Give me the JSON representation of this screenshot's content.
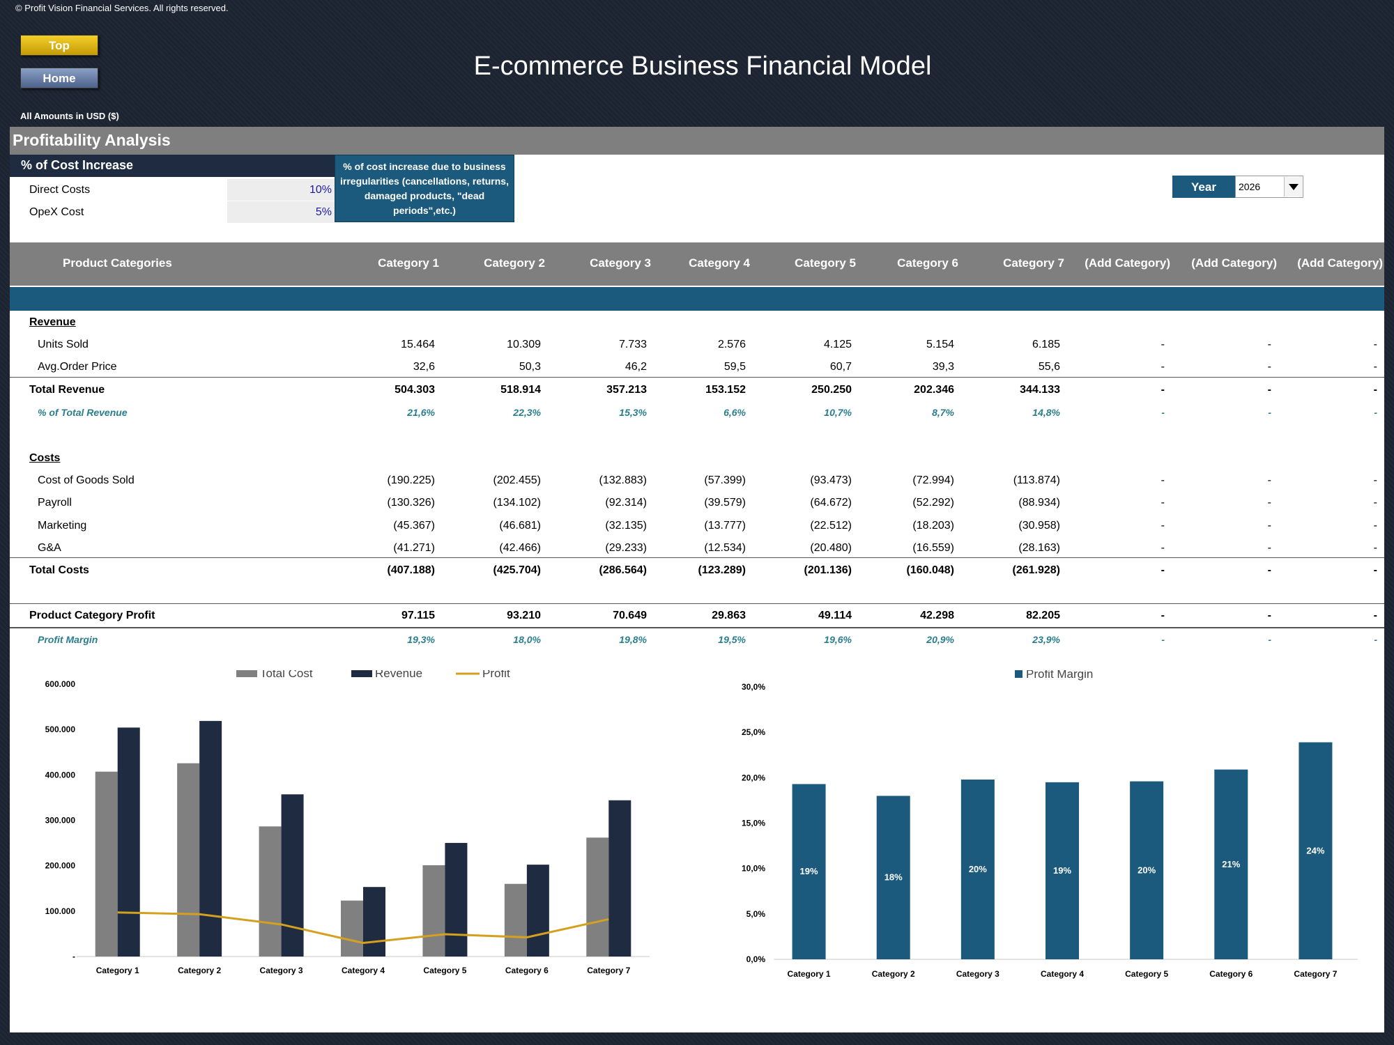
{
  "header": {
    "copyright": "© Profit Vision Financial Services. All rights reserved.",
    "top_button": "Top",
    "home_button": "Home",
    "title": "E-commerce Business Financial Model",
    "amounts_label": "All Amounts in  USD ($)"
  },
  "section": {
    "title": "Profitability Analysis",
    "cost_increase_title": "% of Cost Increase",
    "direct_costs_label": "Direct Costs",
    "direct_costs_value": "10%",
    "opex_label": "OpeX Cost",
    "opex_value": "5%",
    "note": "% of cost increase due to business irregularities (cancellations, returns, damaged products, \"dead periods\",etc.)",
    "year_label": "Year",
    "year_value": "2026"
  },
  "table": {
    "header_label": "Product Categories",
    "columns": [
      "Category 1",
      "Category 2",
      "Category 3",
      "Category 4",
      "Category 5",
      "Category 6",
      "Category 7",
      "(Add Category)",
      "(Add Category)",
      "(Add Category)"
    ],
    "revenue_heading": "Revenue",
    "costs_heading": "Costs",
    "rows": {
      "units_sold": {
        "label": "Units Sold",
        "values": [
          "15.464",
          "10.309",
          "7.733",
          "2.576",
          "4.125",
          "5.154",
          "6.185",
          "-",
          "-",
          "-"
        ]
      },
      "avg_price": {
        "label": "Avg.Order Price",
        "values": [
          "32,6",
          "50,3",
          "46,2",
          "59,5",
          "60,7",
          "39,3",
          "55,6",
          "-",
          "-",
          "-"
        ]
      },
      "total_revenue": {
        "label": "Total Revenue",
        "values": [
          "504.303",
          "518.914",
          "357.213",
          "153.152",
          "250.250",
          "202.346",
          "344.133",
          "-",
          "-",
          "-"
        ]
      },
      "pct_revenue": {
        "label": "% of Total Revenue",
        "values": [
          "21,6%",
          "22,3%",
          "15,3%",
          "6,6%",
          "10,7%",
          "8,7%",
          "14,8%",
          "-",
          "-",
          "-"
        ]
      },
      "cogs": {
        "label": "Cost of Goods Sold",
        "values": [
          "(190.225)",
          "(202.455)",
          "(132.883)",
          "(57.399)",
          "(93.473)",
          "(72.994)",
          "(113.874)",
          "-",
          "-",
          "-"
        ]
      },
      "payroll": {
        "label": "Payroll",
        "values": [
          "(130.326)",
          "(134.102)",
          "(92.314)",
          "(39.579)",
          "(64.672)",
          "(52.292)",
          "(88.934)",
          "-",
          "-",
          "-"
        ]
      },
      "marketing": {
        "label": "Marketing",
        "values": [
          "(45.367)",
          "(46.681)",
          "(32.135)",
          "(13.777)",
          "(22.512)",
          "(18.203)",
          "(30.958)",
          "-",
          "-",
          "-"
        ]
      },
      "ga": {
        "label": "G&A",
        "values": [
          "(41.271)",
          "(42.466)",
          "(29.233)",
          "(12.534)",
          "(20.480)",
          "(16.559)",
          "(28.163)",
          "-",
          "-",
          "-"
        ]
      },
      "total_costs": {
        "label": "Total Costs",
        "values": [
          "(407.188)",
          "(425.704)",
          "(286.564)",
          "(123.289)",
          "(201.136)",
          "(160.048)",
          "(261.928)",
          "-",
          "-",
          "-"
        ]
      },
      "profit": {
        "label": "Product Category Profit",
        "values": [
          "97.115",
          "93.210",
          "70.649",
          "29.863",
          "49.114",
          "42.298",
          "82.205",
          "-",
          "-",
          "-"
        ]
      },
      "margin": {
        "label": "Profit Margin",
        "values": [
          "19,3%",
          "18,0%",
          "19,8%",
          "19,5%",
          "19,6%",
          "20,9%",
          "23,9%",
          "-",
          "-",
          "-"
        ]
      }
    }
  },
  "chart_data": [
    {
      "type": "bar",
      "categories": [
        "Category 1",
        "Category 2",
        "Category 3",
        "Category 4",
        "Category 5",
        "Category 6",
        "Category 7"
      ],
      "series": [
        {
          "name": "Total Cost",
          "type": "bar",
          "values": [
            407188,
            425704,
            286564,
            123289,
            201136,
            160048,
            261928
          ],
          "color": "#808080"
        },
        {
          "name": "Revenue",
          "type": "bar",
          "values": [
            504303,
            518914,
            357213,
            153152,
            250250,
            202346,
            344133
          ],
          "color": "#1f2b40"
        },
        {
          "name": "Profit",
          "type": "line",
          "values": [
            97115,
            93210,
            70649,
            29863,
            49114,
            42298,
            82205
          ],
          "color": "#d4a020"
        }
      ],
      "yticks": [
        "-",
        "100.000",
        "200.000",
        "300.000",
        "400.000",
        "500.000",
        "600.000"
      ],
      "ylim": [
        0,
        600000
      ],
      "legend_position": "top"
    },
    {
      "type": "bar",
      "categories": [
        "Category 1",
        "Category 2",
        "Category 3",
        "Category 4",
        "Category 5",
        "Category 6",
        "Category 7"
      ],
      "series": [
        {
          "name": "Profit Margin",
          "values": [
            19.3,
            18.0,
            19.8,
            19.5,
            19.6,
            20.9,
            23.9
          ],
          "color": "#1b5a7c"
        }
      ],
      "data_labels": [
        "19%",
        "18%",
        "20%",
        "19%",
        "20%",
        "21%",
        "24%"
      ],
      "yticks": [
        "0,0%",
        "5,0%",
        "10,0%",
        "15,0%",
        "20,0%",
        "25,0%",
        "30,0%"
      ],
      "ylim": [
        0,
        30
      ],
      "legend_position": "top"
    }
  ]
}
